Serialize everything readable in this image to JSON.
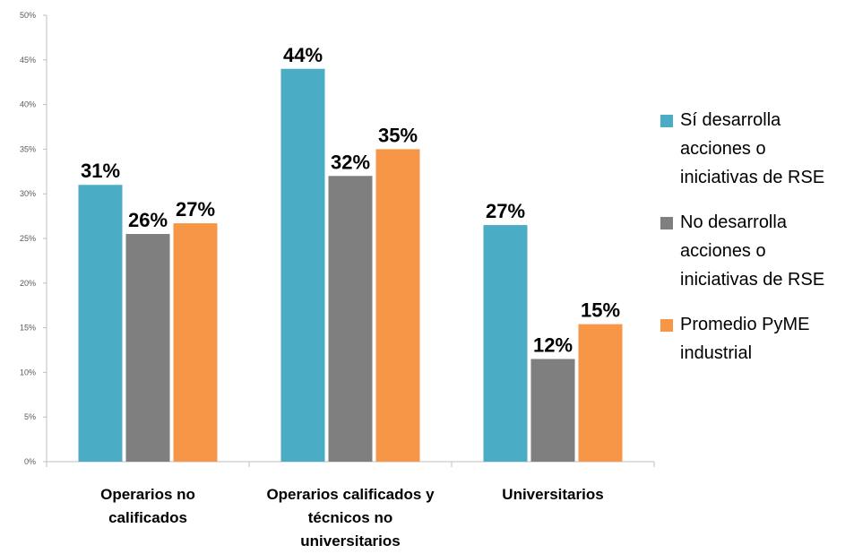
{
  "chart_data": {
    "type": "bar",
    "categories": [
      [
        "Operarios no",
        "calificados"
      ],
      [
        "Operarios calificados y",
        "técnicos no",
        "universitarios"
      ],
      [
        "Universitarios"
      ]
    ],
    "series": [
      {
        "name": "Sí desarrolla acciones o iniciativas de RSE",
        "name_lines": [
          "Sí desarrolla",
          "acciones o",
          "iniciativas de RSE"
        ],
        "color": "#4BACC6",
        "values": [
          31,
          44,
          26.5
        ],
        "labels": [
          "31%",
          "44%",
          "27%"
        ]
      },
      {
        "name": "No desarrolla acciones o iniciativas de RSE",
        "name_lines": [
          "No desarrolla",
          "acciones o",
          "iniciativas de RSE"
        ],
        "color": "#7F7F7F",
        "values": [
          25.5,
          32,
          11.5
        ],
        "labels": [
          "26%",
          "32%",
          "12%"
        ]
      },
      {
        "name": "Promedio PyME industrial",
        "name_lines": [
          "Promedio PyME",
          "industrial"
        ],
        "color": "#F79646",
        "values": [
          26.7,
          35,
          15.4
        ],
        "labels": [
          "27%",
          "35%",
          "15%"
        ]
      }
    ],
    "yticks": [
      "0%",
      "5%",
      "10%",
      "15%",
      "20%",
      "25%",
      "30%",
      "35%",
      "40%",
      "45%",
      "50%"
    ],
    "ylim": [
      0,
      50
    ],
    "legend_position": "right",
    "grid": false
  }
}
